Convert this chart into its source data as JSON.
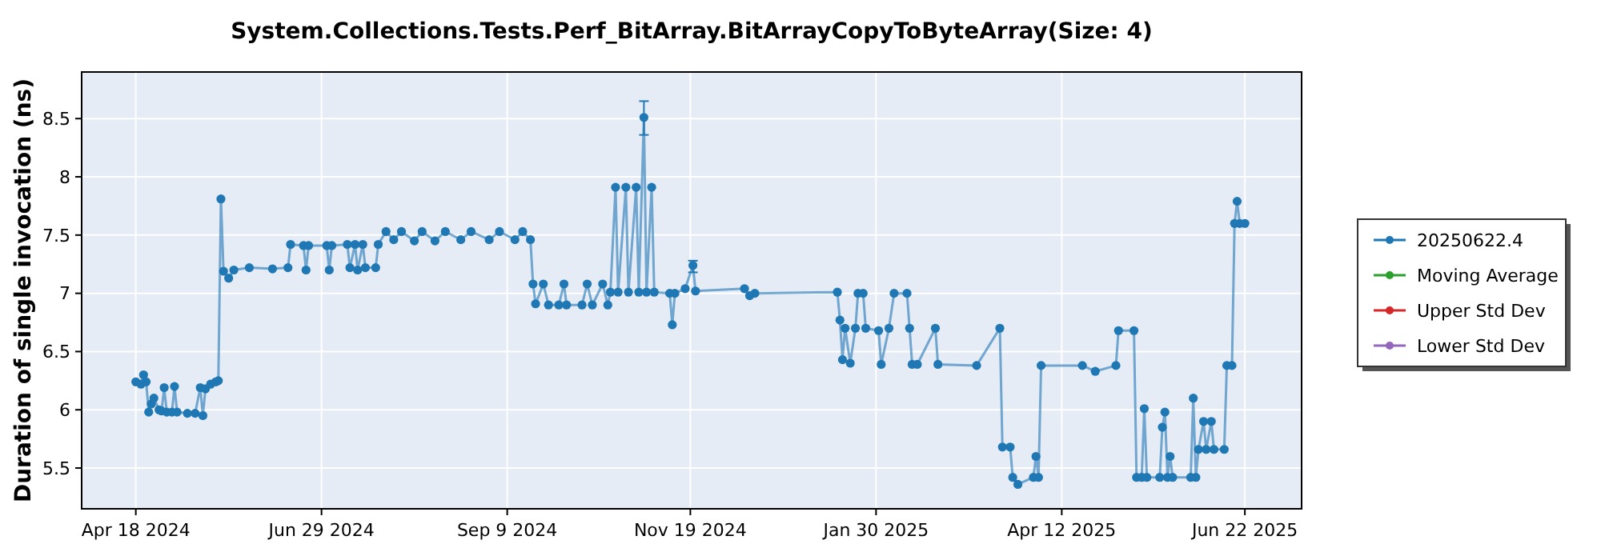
{
  "chart_data": {
    "type": "line",
    "title": "System.Collections.Tests.Perf_BitArray.BitArrayCopyToByteArray(Size: 4)",
    "ylabel": "Duration of single invocation (ns)",
    "xlim": [
      "2024-03-28",
      "2025-07-14"
    ],
    "xticks": [
      {
        "value": "2024-04-18",
        "label": "Apr 18 2024"
      },
      {
        "value": "2024-06-29",
        "label": "Jun 29 2024"
      },
      {
        "value": "2024-09-09",
        "label": "Sep 9 2024"
      },
      {
        "value": "2024-11-19",
        "label": "Nov 19 2024"
      },
      {
        "value": "2025-01-30",
        "label": "Jan 30 2025"
      },
      {
        "value": "2025-04-12",
        "label": "Apr 12 2025"
      },
      {
        "value": "2025-06-22",
        "label": "Jun 22 2025"
      }
    ],
    "ylim": [
      5.15,
      8.9
    ],
    "yticks": [
      5.5,
      6,
      6.5,
      7,
      7.5,
      8,
      8.5
    ],
    "grid": true,
    "legend": "right",
    "marker": "circle",
    "line_style": "solid",
    "series": [
      {
        "name": "20250622.4",
        "color": "#1f77b4",
        "x": [
          "2024-04-18",
          "2024-04-20",
          "2024-04-21",
          "2024-04-22",
          "2024-04-23",
          "2024-04-24",
          "2024-04-25",
          "2024-04-27",
          "2024-04-28",
          "2024-04-29",
          "2024-04-30",
          "2024-05-02",
          "2024-05-03",
          "2024-05-04",
          "2024-05-08",
          "2024-05-11",
          "2024-05-13",
          "2024-05-14",
          "2024-05-15",
          "2024-05-17",
          "2024-05-19",
          "2024-05-20",
          "2024-05-21",
          "2024-05-22",
          "2024-05-24",
          "2024-05-26",
          "2024-06-01",
          "2024-06-10",
          "2024-06-16",
          "2024-06-17",
          "2024-06-22",
          "2024-06-23",
          "2024-06-24",
          "2024-07-01",
          "2024-07-02",
          "2024-07-03",
          "2024-07-09",
          "2024-07-10",
          "2024-07-12",
          "2024-07-13",
          "2024-07-15",
          "2024-07-16",
          "2024-07-20",
          "2024-07-21",
          "2024-07-24",
          "2024-07-27",
          "2024-07-30",
          "2024-08-04",
          "2024-08-07",
          "2024-08-12",
          "2024-08-16",
          "2024-08-22",
          "2024-08-26",
          "2024-09-02",
          "2024-09-06",
          "2024-09-12",
          "2024-09-15",
          "2024-09-18",
          "2024-09-19",
          "2024-09-20",
          "2024-09-23",
          "2024-09-25",
          "2024-09-29",
          "2024-10-01",
          "2024-10-02",
          "2024-10-08",
          "2024-10-10",
          "2024-10-12",
          "2024-10-16",
          "2024-10-18",
          "2024-10-19",
          "2024-10-21",
          "2024-10-22",
          "2024-10-25",
          "2024-10-26",
          "2024-10-29",
          "2024-10-30",
          "2024-11-01",
          "2024-11-02",
          "2024-11-04",
          "2024-11-05",
          "2024-11-11",
          "2024-11-12",
          "2024-11-13",
          "2024-11-17",
          "2024-11-20",
          "2024-11-21",
          "2024-12-10",
          "2024-12-12",
          "2024-12-14",
          "2025-01-15",
          "2025-01-16",
          "2025-01-17",
          "2025-01-18",
          "2025-01-20",
          "2025-01-22",
          "2025-01-23",
          "2025-01-25",
          "2025-01-26",
          "2025-01-31",
          "2025-02-01",
          "2025-02-04",
          "2025-02-06",
          "2025-02-11",
          "2025-02-12",
          "2025-02-13",
          "2025-02-15",
          "2025-02-22",
          "2025-02-23",
          "2025-03-10",
          "2025-03-19",
          "2025-03-20",
          "2025-03-23",
          "2025-03-24",
          "2025-03-26",
          "2025-04-01",
          "2025-04-02",
          "2025-04-03",
          "2025-04-04",
          "2025-04-20",
          "2025-04-25",
          "2025-05-03",
          "2025-05-04",
          "2025-05-10",
          "2025-05-11",
          "2025-05-13",
          "2025-05-14",
          "2025-05-15",
          "2025-05-20",
          "2025-05-21",
          "2025-05-22",
          "2025-05-23",
          "2025-05-24",
          "2025-05-25",
          "2025-06-01",
          "2025-06-02",
          "2025-06-03",
          "2025-06-04",
          "2025-06-06",
          "2025-06-07",
          "2025-06-09",
          "2025-06-10",
          "2025-06-14",
          "2025-06-15",
          "2025-06-17",
          "2025-06-18",
          "2025-06-19",
          "2025-06-20",
          "2025-06-22"
        ],
        "values": [
          6.24,
          6.22,
          6.3,
          6.24,
          5.98,
          6.05,
          6.1,
          6.0,
          5.99,
          6.19,
          5.98,
          5.98,
          6.2,
          5.98,
          5.97,
          5.97,
          6.19,
          5.95,
          6.18,
          6.22,
          6.24,
          6.25,
          7.81,
          7.19,
          7.13,
          7.2,
          7.22,
          7.21,
          7.22,
          7.42,
          7.41,
          7.2,
          7.41,
          7.41,
          7.2,
          7.41,
          7.42,
          7.22,
          7.42,
          7.2,
          7.42,
          7.22,
          7.22,
          7.42,
          7.53,
          7.46,
          7.53,
          7.45,
          7.53,
          7.45,
          7.53,
          7.46,
          7.53,
          7.46,
          7.53,
          7.46,
          7.53,
          7.46,
          7.08,
          6.91,
          7.08,
          6.9,
          6.9,
          7.08,
          6.9,
          6.9,
          7.08,
          6.9,
          7.08,
          6.9,
          7.01,
          7.91,
          7.01,
          7.91,
          7.01,
          7.91,
          7.01,
          8.51,
          7.01,
          7.91,
          7.01,
          7.0,
          6.73,
          7.0,
          7.04,
          7.24,
          7.02,
          7.04,
          6.98,
          7.0,
          7.01,
          6.77,
          6.43,
          6.7,
          6.4,
          6.7,
          7.0,
          7.0,
          6.7,
          6.68,
          6.39,
          6.7,
          7.0,
          7.0,
          6.7,
          6.39,
          6.39,
          6.7,
          6.39,
          6.38,
          6.7,
          5.68,
          5.68,
          5.42,
          5.36,
          5.42,
          5.6,
          5.42,
          6.38,
          6.38,
          6.33,
          6.38,
          6.68,
          6.68,
          5.42,
          5.42,
          6.01,
          5.42,
          5.42,
          5.85,
          5.98,
          5.42,
          5.6,
          5.42,
          5.42,
          6.1,
          5.42,
          5.66,
          5.9,
          5.66,
          5.9,
          5.66,
          5.66,
          6.38,
          6.38,
          7.6,
          7.79,
          7.6,
          7.6
        ],
        "errors": [
          null,
          null,
          null,
          null,
          null,
          null,
          null,
          null,
          null,
          null,
          null,
          null,
          null,
          null,
          null,
          null,
          null,
          null,
          null,
          null,
          null,
          null,
          null,
          null,
          null,
          null,
          null,
          null,
          null,
          null,
          null,
          null,
          null,
          null,
          null,
          null,
          null,
          null,
          null,
          null,
          null,
          null,
          null,
          null,
          null,
          null,
          null,
          null,
          null,
          null,
          null,
          null,
          null,
          null,
          null,
          null,
          null,
          null,
          null,
          null,
          null,
          null,
          null,
          null,
          null,
          null,
          null,
          null,
          null,
          null,
          null,
          null,
          null,
          null,
          null,
          null,
          null,
          [
            8.36,
            8.65
          ],
          null,
          null,
          null,
          null,
          null,
          null,
          null,
          [
            7.18,
            7.28
          ],
          null,
          null,
          null,
          null,
          null,
          null,
          null,
          null,
          null,
          null,
          null,
          null,
          null,
          null,
          null,
          null,
          null,
          null,
          null,
          null,
          null,
          null,
          null,
          null,
          null,
          null,
          null,
          null,
          null,
          null,
          null,
          null,
          null,
          null,
          null,
          null,
          null,
          null,
          null,
          null,
          null,
          null,
          null,
          null,
          null,
          null,
          null,
          null,
          null,
          null,
          null,
          null,
          null,
          null,
          null,
          null,
          null,
          null,
          null,
          null,
          null,
          null,
          null
        ]
      },
      {
        "name": "Moving Average",
        "color": "#2ca02c"
      },
      {
        "name": "Upper Std Dev",
        "color": "#d62728"
      },
      {
        "name": "Lower Std Dev",
        "color": "#9467bd"
      }
    ]
  }
}
